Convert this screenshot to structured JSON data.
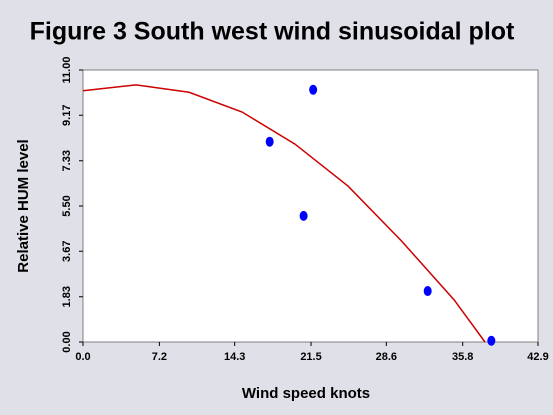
{
  "chart_data": {
    "type": "scatter",
    "title": "Figure 3 South west wind sinusoidal plot",
    "x_label": "Wind speed knots",
    "y_label": "Relative HUM level",
    "xlim": [
      0,
      42.9
    ],
    "ylim": [
      0,
      11
    ],
    "xticks": [
      {
        "value": 0,
        "label": "0.0"
      },
      7.2,
      14.3,
      21.5,
      28.6,
      35.8,
      42.9
    ],
    "yticks": [
      {
        "value": 0,
        "label": "0.00"
      },
      1.83,
      3.67,
      {
        "value": 5.5,
        "label": "5.50"
      },
      7.33,
      9.17,
      {
        "value": 11,
        "label": "11.00"
      }
    ],
    "series": [
      {
        "type": "scatter",
        "color": "#0000ff",
        "x": [
          17.6,
          21.7,
          20.8,
          32.5,
          38.5
        ],
        "values": [
          8.1,
          10.2,
          5.1,
          2.06,
          0.05
        ]
      },
      {
        "type": "line",
        "color": "#cc0000",
        "x": [
          0,
          5,
          10,
          15,
          20,
          25,
          30,
          35,
          37.9
        ],
        "values": [
          10.16,
          10.4,
          10.1,
          9.3,
          8.0,
          6.3,
          4.1,
          1.7,
          0
        ]
      }
    ]
  }
}
